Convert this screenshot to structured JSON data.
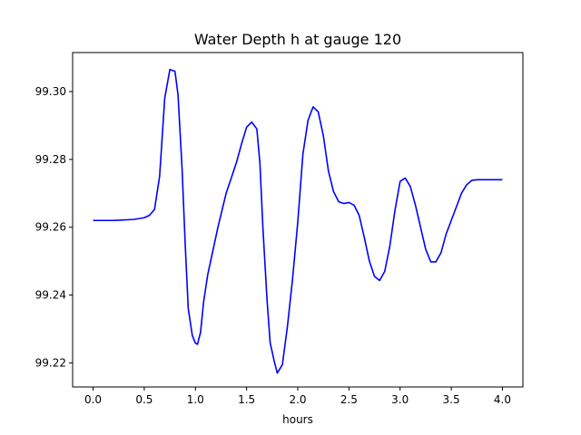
{
  "chart_data": {
    "type": "line",
    "title": "Water Depth h at gauge 120",
    "xlabel": "hours",
    "ylabel": "",
    "xlim": [
      -0.2,
      4.2
    ],
    "ylim": [
      99.2129,
      99.3115
    ],
    "xticks": [
      0.0,
      0.5,
      1.0,
      1.5,
      2.0,
      2.5,
      3.0,
      3.5,
      4.0
    ],
    "xtick_labels": [
      "0.0",
      "0.5",
      "1.0",
      "1.5",
      "2.0",
      "2.5",
      "3.0",
      "3.5",
      "4.0"
    ],
    "yticks": [
      99.22,
      99.24,
      99.26,
      99.28,
      99.3
    ],
    "ytick_labels": [
      "99.22",
      "99.24",
      "99.26",
      "99.28",
      "99.30"
    ],
    "grid": false,
    "legend": "none",
    "series": [
      {
        "color": "#0000ff",
        "x": [
          0.0,
          0.2,
          0.4,
          0.5,
          0.55,
          0.6,
          0.65,
          0.7,
          0.75,
          0.8,
          0.83,
          0.87,
          0.9,
          0.93,
          0.97,
          1.0,
          1.02,
          1.05,
          1.08,
          1.12,
          1.17,
          1.22,
          1.3,
          1.35,
          1.4,
          1.45,
          1.5,
          1.55,
          1.6,
          1.63,
          1.66,
          1.7,
          1.73,
          1.77,
          1.8,
          1.85,
          1.9,
          1.95,
          2.0,
          2.05,
          2.1,
          2.15,
          2.2,
          2.25,
          2.3,
          2.35,
          2.4,
          2.45,
          2.5,
          2.55,
          2.6,
          2.65,
          2.7,
          2.75,
          2.8,
          2.85,
          2.9,
          2.95,
          3.0,
          3.05,
          3.1,
          3.15,
          3.2,
          3.25,
          3.3,
          3.35,
          3.4,
          3.45,
          3.5,
          3.55,
          3.6,
          3.65,
          3.7,
          3.75,
          3.8,
          3.85,
          3.9,
          3.95,
          4.0
        ],
        "y": [
          99.262,
          99.262,
          99.2623,
          99.2628,
          99.2635,
          99.2652,
          99.275,
          99.298,
          99.3065,
          99.306,
          99.299,
          99.277,
          99.255,
          99.236,
          99.228,
          99.2258,
          99.2255,
          99.229,
          99.238,
          99.246,
          99.253,
          99.26,
          99.27,
          99.2745,
          99.279,
          99.2845,
          99.2895,
          99.291,
          99.289,
          99.279,
          99.2595,
          99.2385,
          99.226,
          99.2205,
          99.217,
          99.2195,
          99.231,
          99.245,
          99.2615,
          99.2815,
          99.2915,
          99.2955,
          99.294,
          99.287,
          99.2765,
          99.2705,
          99.2675,
          99.267,
          99.2673,
          99.2665,
          99.2635,
          99.257,
          99.25,
          99.2455,
          99.2443,
          99.247,
          99.2545,
          99.265,
          99.2735,
          99.2745,
          99.272,
          99.2665,
          99.26,
          99.2535,
          99.2498,
          99.2498,
          99.2525,
          99.258,
          99.262,
          99.266,
          99.27,
          99.2725,
          99.2738,
          99.274,
          99.274,
          99.274,
          99.274,
          99.274,
          99.274
        ]
      }
    ]
  }
}
